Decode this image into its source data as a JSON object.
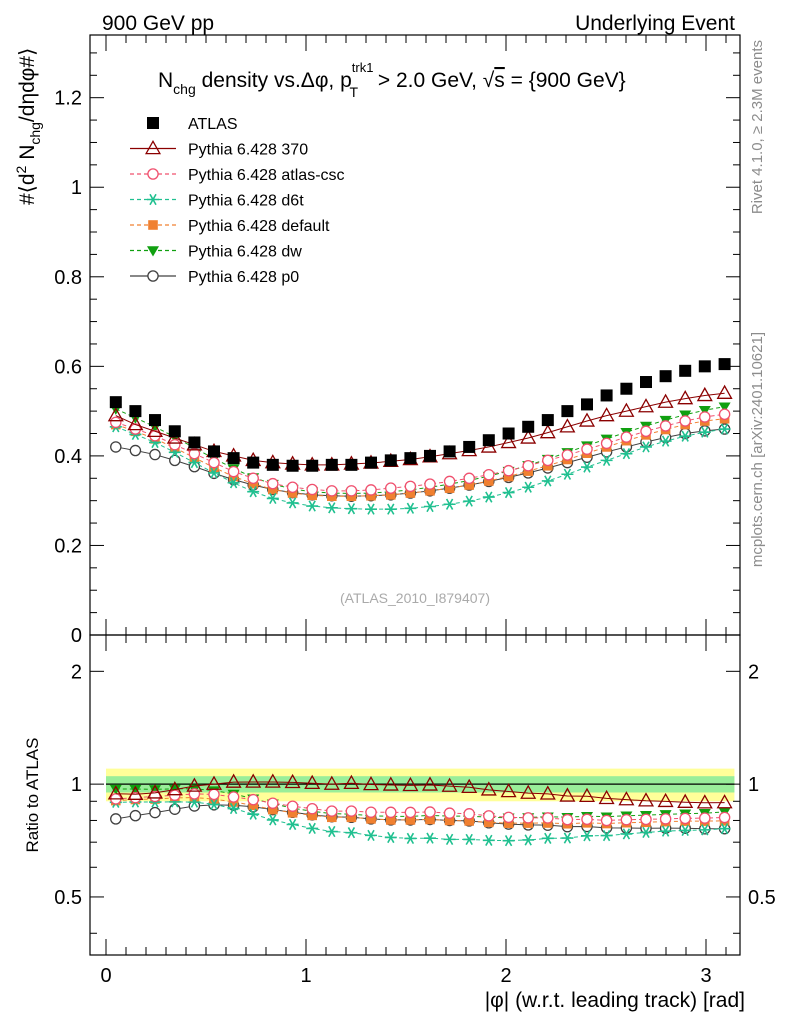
{
  "header": {
    "left": "900 GeV pp",
    "right": "Underlying Event"
  },
  "side_labels": {
    "top": "Rivet 4.1.0, ≥ 2.3M events",
    "bottom": "mcplots.cern.ch [arXiv:2401.10621]"
  },
  "watermark": "(ATLAS_2010_I879407)",
  "title": {
    "text": "N_chg density vs.Δφ, p_T^trk1 > 2.0 GeV, √s = {900 GeV}",
    "n": "N",
    "chg": "chg",
    "mid": " density vs.Δφ, p",
    "trk1": "trk1",
    "T": "T",
    "gt": " > 2.0 GeV, ",
    "root": "√",
    "s": "s",
    "tail": " = {900 GeV}"
  },
  "ylabel_main": {
    "pre": "#⟨d",
    "two": "2",
    "n": " N",
    "chg": "chg",
    "tail": "/dηdφ#⟩"
  },
  "ylabel_ratio": "Ratio to ATLAS",
  "xlabel": "|φ| (w.r.t. leading track) [rad]",
  "main_ticks": [
    "0",
    "0.2",
    "0.4",
    "0.6",
    "0.8",
    "1",
    "1.2"
  ],
  "ratio_ticks": [
    "0.5",
    "1",
    "2"
  ],
  "x_ticks": [
    "0",
    "1",
    "2",
    "3"
  ],
  "legend": [
    "ATLAS",
    "Pythia 6.428 370",
    "Pythia 6.428 atlas-csc",
    "Pythia 6.428 d6t",
    "Pythia 6.428 default",
    "Pythia 6.428 dw",
    "Pythia 6.428 p0"
  ],
  "chart_data": {
    "type": "scatter",
    "title": "N_chg density vs. Δφ, p_T^trk1 > 2.0 GeV, √s = {900 GeV}",
    "xlabel": "|φ| (w.r.t. leading track) [rad]",
    "ylabel": "#⟨d² N_chg/dηdφ#⟩",
    "ratio_ylabel": "Ratio to ATLAS",
    "xlim": [
      -0.08,
      3.17
    ],
    "ylim": [
      0,
      1.34
    ],
    "ratio_ylim": [
      0.35,
      2.5
    ],
    "ratio_scale": "log",
    "nbins": 32,
    "bin_width": 0.09817,
    "x": [
      0.049,
      0.147,
      0.245,
      0.344,
      0.442,
      0.54,
      0.638,
      0.736,
      0.834,
      0.933,
      1.031,
      1.129,
      1.227,
      1.325,
      1.424,
      1.522,
      1.62,
      1.718,
      1.816,
      1.914,
      2.013,
      2.111,
      2.209,
      2.307,
      2.405,
      2.503,
      2.602,
      2.7,
      2.798,
      2.896,
      2.994,
      3.093
    ],
    "series": [
      {
        "name": "ATLAS",
        "marker": "filled-square",
        "color": "#000000",
        "values": [
          0.52,
          0.5,
          0.48,
          0.455,
          0.43,
          0.41,
          0.395,
          0.385,
          0.38,
          0.378,
          0.378,
          0.38,
          0.38,
          0.385,
          0.39,
          0.395,
          0.4,
          0.41,
          0.42,
          0.435,
          0.45,
          0.465,
          0.48,
          0.5,
          0.515,
          0.535,
          0.55,
          0.565,
          0.578,
          0.59,
          0.6,
          0.605
        ]
      },
      {
        "name": "Pythia 6.428 370",
        "marker": "open-triangle",
        "color": "#8b0000",
        "values": [
          0.49,
          0.47,
          0.455,
          0.44,
          0.425,
          0.41,
          0.4,
          0.39,
          0.385,
          0.382,
          0.38,
          0.38,
          0.382,
          0.384,
          0.388,
          0.392,
          0.398,
          0.405,
          0.412,
          0.42,
          0.43,
          0.44,
          0.452,
          0.465,
          0.478,
          0.49,
          0.5,
          0.51,
          0.52,
          0.528,
          0.535,
          0.54
        ]
      },
      {
        "name": "Pythia 6.428 atlas-csc",
        "marker": "open-circle",
        "color": "#f0506e",
        "values": [
          0.475,
          0.46,
          0.445,
          0.425,
          0.405,
          0.385,
          0.365,
          0.35,
          0.338,
          0.33,
          0.325,
          0.322,
          0.322,
          0.324,
          0.328,
          0.332,
          0.337,
          0.343,
          0.35,
          0.358,
          0.367,
          0.378,
          0.39,
          0.402,
          0.415,
          0.428,
          0.442,
          0.455,
          0.467,
          0.478,
          0.487,
          0.493
        ]
      },
      {
        "name": "Pythia 6.428 d6t",
        "marker": "asterisk",
        "color": "#20c090",
        "values": [
          0.465,
          0.448,
          0.43,
          0.408,
          0.385,
          0.362,
          0.34,
          0.32,
          0.305,
          0.295,
          0.288,
          0.284,
          0.282,
          0.281,
          0.281,
          0.283,
          0.287,
          0.292,
          0.299,
          0.308,
          0.318,
          0.33,
          0.344,
          0.359,
          0.375,
          0.39,
          0.405,
          0.42,
          0.433,
          0.444,
          0.453,
          0.46
        ]
      },
      {
        "name": "Pythia 6.428 default",
        "marker": "filled-square-small",
        "color": "#f08030",
        "values": [
          0.47,
          0.455,
          0.438,
          0.418,
          0.396,
          0.374,
          0.354,
          0.338,
          0.325,
          0.317,
          0.312,
          0.31,
          0.31,
          0.311,
          0.313,
          0.317,
          0.322,
          0.328,
          0.335,
          0.344,
          0.354,
          0.366,
          0.378,
          0.392,
          0.406,
          0.42,
          0.434,
          0.447,
          0.459,
          0.47,
          0.478,
          0.483
        ]
      },
      {
        "name": "Pythia 6.428 dw",
        "marker": "filled-triangle-down",
        "color": "#10a010",
        "values": [
          0.505,
          0.485,
          0.465,
          0.442,
          0.418,
          0.394,
          0.372,
          0.352,
          0.337,
          0.326,
          0.32,
          0.317,
          0.316,
          0.317,
          0.32,
          0.324,
          0.33,
          0.337,
          0.345,
          0.355,
          0.366,
          0.379,
          0.393,
          0.408,
          0.423,
          0.438,
          0.453,
          0.467,
          0.48,
          0.492,
          0.502,
          0.51
        ]
      },
      {
        "name": "Pythia 6.428 p0",
        "marker": "open-circle",
        "color": "#404040",
        "values": [
          0.42,
          0.412,
          0.403,
          0.39,
          0.376,
          0.361,
          0.347,
          0.335,
          0.325,
          0.318,
          0.313,
          0.311,
          0.31,
          0.311,
          0.313,
          0.317,
          0.322,
          0.328,
          0.335,
          0.343,
          0.352,
          0.362,
          0.373,
          0.385,
          0.397,
          0.409,
          0.42,
          0.431,
          0.441,
          0.45,
          0.456,
          0.46
        ]
      }
    ],
    "ratio_band": {
      "inner": [
        0.95,
        1.05
      ],
      "outer": [
        0.9,
        1.1
      ]
    }
  }
}
